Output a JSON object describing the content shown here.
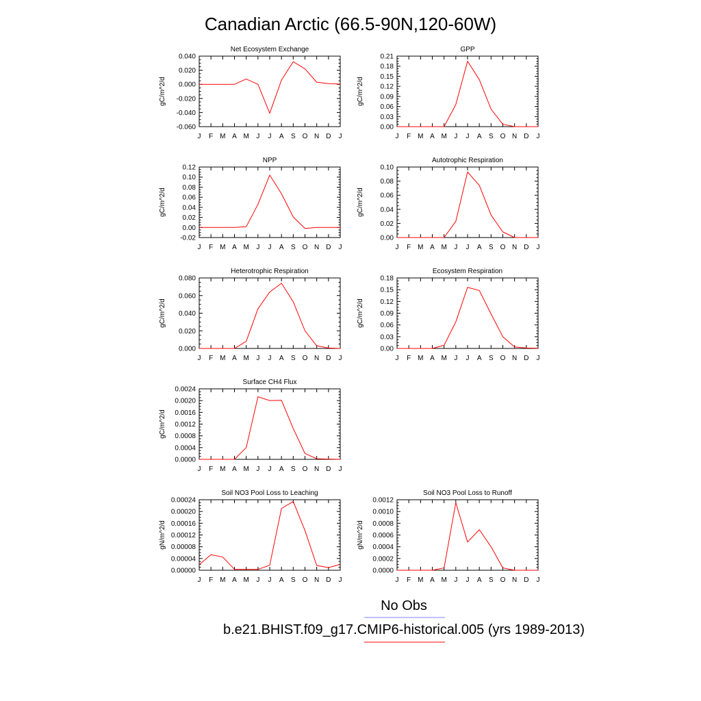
{
  "page": {
    "title": "Canadian Arctic (66.5-90N,120-60W)"
  },
  "legend": {
    "obs_label": "No Obs",
    "obs_color": "#8080ff",
    "model_label": "b.e21.BHIST.f09_g17.CMIP6-historical.005 (yrs 1989-2013)",
    "model_color": "#ff0000"
  },
  "chart_data": [
    {
      "type": "line",
      "title": "Net Ecosystem Exchange",
      "ylabel": "gC/m^2/d",
      "x": [
        "J",
        "F",
        "M",
        "A",
        "M",
        "J",
        "J",
        "A",
        "S",
        "O",
        "N",
        "D",
        "J"
      ],
      "ylim": [
        -0.06,
        0.04
      ],
      "yticks": [
        "-0.060",
        "-0.040",
        "-0.020",
        "0.000",
        "0.020",
        "0.040"
      ],
      "series": [
        {
          "values": [
            0.0,
            0.0,
            0.0,
            0.0,
            0.0075,
            0.0,
            -0.041,
            0.006,
            0.032,
            0.022,
            0.003,
            0.001,
            0.0005
          ]
        }
      ]
    },
    {
      "type": "line",
      "title": "GPP",
      "ylabel": "gC/m^2/d",
      "x": [
        "J",
        "F",
        "M",
        "A",
        "M",
        "J",
        "J",
        "A",
        "S",
        "O",
        "N",
        "D",
        "J"
      ],
      "ylim": [
        0,
        0.21
      ],
      "yticks": [
        "0.00",
        "0.03",
        "0.06",
        "0.09",
        "0.12",
        "0.15",
        "0.18",
        "0.21"
      ],
      "series": [
        {
          "values": [
            0.0,
            0.0,
            0.0,
            0.0,
            0.0,
            0.066,
            0.195,
            0.14,
            0.052,
            0.007,
            0.0,
            0.0,
            0.0
          ]
        }
      ]
    },
    {
      "type": "line",
      "title": "NPP",
      "ylabel": "gC/m^2/d",
      "x": [
        "J",
        "F",
        "M",
        "A",
        "M",
        "J",
        "J",
        "A",
        "S",
        "O",
        "N",
        "D",
        "J"
      ],
      "ylim": [
        -0.02,
        0.12
      ],
      "yticks": [
        "-0.02",
        "0.00",
        "0.02",
        "0.04",
        "0.06",
        "0.08",
        "0.10",
        "0.12"
      ],
      "series": [
        {
          "values": [
            0.0,
            0.0,
            0.0,
            0.0,
            0.0015,
            0.046,
            0.104,
            0.067,
            0.021,
            -0.002,
            0.0,
            0.0,
            0.0
          ]
        }
      ]
    },
    {
      "type": "line",
      "title": "Autotrophic Respiration",
      "ylabel": "gC/m^2/d",
      "x": [
        "J",
        "F",
        "M",
        "A",
        "M",
        "J",
        "J",
        "A",
        "S",
        "O",
        "N",
        "D",
        "J"
      ],
      "ylim": [
        0,
        0.1
      ],
      "yticks": [
        "0.00",
        "0.02",
        "0.04",
        "0.06",
        "0.08",
        "0.10"
      ],
      "series": [
        {
          "values": [
            0.0,
            0.0,
            0.0,
            0.0,
            0.0,
            0.023,
            0.093,
            0.074,
            0.032,
            0.008,
            0.0,
            0.0,
            0.0
          ]
        }
      ]
    },
    {
      "type": "line",
      "title": "Heterotrophic Respiration",
      "ylabel": "gC/m^2/d",
      "x": [
        "J",
        "F",
        "M",
        "A",
        "M",
        "J",
        "J",
        "A",
        "S",
        "O",
        "N",
        "D",
        "J"
      ],
      "ylim": [
        0,
        0.08
      ],
      "yticks": [
        "0.000",
        "0.020",
        "0.040",
        "0.060",
        "0.080"
      ],
      "series": [
        {
          "values": [
            0.0,
            0.0,
            0.0,
            0.0,
            0.008,
            0.045,
            0.064,
            0.074,
            0.053,
            0.02,
            0.003,
            0.0005,
            0.0
          ]
        }
      ]
    },
    {
      "type": "line",
      "title": "Ecosystem Respiration",
      "ylabel": "gC/m^2/d",
      "x": [
        "J",
        "F",
        "M",
        "A",
        "M",
        "J",
        "J",
        "A",
        "S",
        "O",
        "N",
        "D",
        "J"
      ],
      "ylim": [
        0,
        0.18
      ],
      "yticks": [
        "0.00",
        "0.03",
        "0.06",
        "0.09",
        "0.12",
        "0.15",
        "0.18"
      ],
      "series": [
        {
          "values": [
            0.0,
            0.0,
            0.0,
            0.0,
            0.008,
            0.068,
            0.156,
            0.148,
            0.088,
            0.03,
            0.004,
            0.001,
            0.0005
          ]
        }
      ]
    },
    {
      "type": "line",
      "title": "Surface CH4 Flux",
      "ylabel": "gC/m^2/d",
      "x": [
        "J",
        "F",
        "M",
        "A",
        "M",
        "J",
        "J",
        "A",
        "S",
        "O",
        "N",
        "D",
        "J"
      ],
      "ylim": [
        0,
        0.0024
      ],
      "yticks": [
        "0.0000",
        "0.0004",
        "0.0008",
        "0.0012",
        "0.0016",
        "0.0020",
        "0.0024"
      ],
      "series": [
        {
          "values": [
            0.0,
            0.0,
            0.0,
            0.0,
            0.0004,
            0.00213,
            0.002,
            0.00201,
            0.00105,
            0.0002,
            2e-05,
            1e-05,
            0.0
          ]
        }
      ]
    },
    {
      "type": "line",
      "title": "Soil NO3 Pool Loss to Leaching",
      "ylabel": "gN/m^2/d",
      "x": [
        "J",
        "F",
        "M",
        "A",
        "M",
        "J",
        "J",
        "A",
        "S",
        "O",
        "N",
        "D",
        "J"
      ],
      "ylim": [
        0,
        0.00024
      ],
      "yticks": [
        "0.00000",
        "0.00004",
        "0.00008",
        "0.00012",
        "0.00016",
        "0.00020",
        "0.00024"
      ],
      "series": [
        {
          "values": [
            1.9e-05,
            5.3e-05,
            4.5e-05,
            3e-06,
            3e-06,
            3e-06,
            1.7e-05,
            0.00021,
            0.000234,
            0.000135,
            1.6e-05,
            9e-06,
            2e-05
          ]
        }
      ]
    },
    {
      "type": "line",
      "title": "Soil NO3 Pool Loss to Runoff",
      "ylabel": "gN/m^2/d",
      "x": [
        "J",
        "F",
        "M",
        "A",
        "M",
        "J",
        "J",
        "A",
        "S",
        "O",
        "N",
        "D",
        "J"
      ],
      "ylim": [
        0,
        0.0012
      ],
      "yticks": [
        "0.0000",
        "0.0002",
        "0.0004",
        "0.0006",
        "0.0008",
        "0.0010",
        "0.0012"
      ],
      "series": [
        {
          "values": [
            0.0,
            0.0,
            0.0,
            0.0,
            4e-05,
            0.00115,
            0.00048,
            0.00069,
            0.0004,
            4e-05,
            0.0,
            0.0,
            0.0
          ]
        }
      ]
    }
  ]
}
